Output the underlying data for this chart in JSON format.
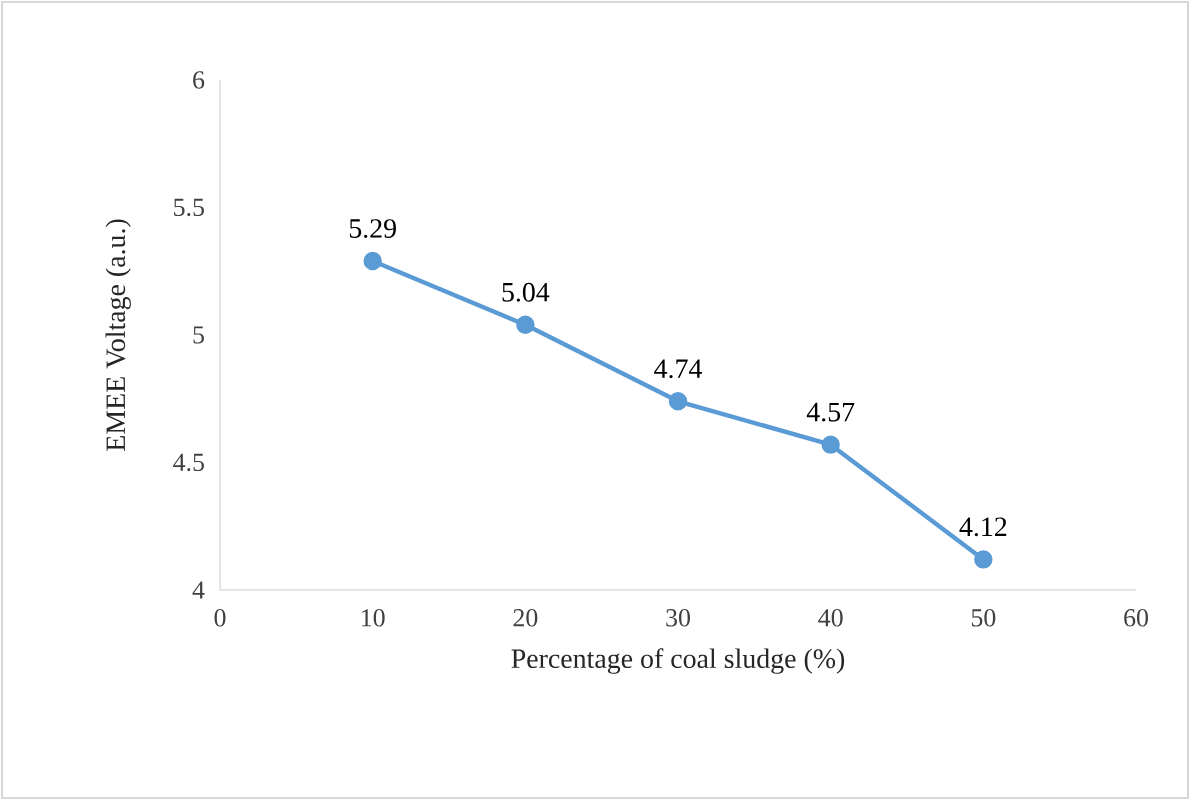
{
  "chart_data": {
    "type": "line",
    "xlabel": "Percentage of coal sludge (%)",
    "ylabel": "EMEE  Voltage (a.u.)",
    "series": [
      {
        "color": "#5b9bd5",
        "x": [
          10,
          20,
          30,
          40,
          50
        ],
        "values": [
          5.29,
          5.04,
          4.74,
          4.57,
          4.12
        ]
      }
    ],
    "xlim": [
      0,
      60
    ],
    "xticks": [
      0,
      10,
      20,
      30,
      40,
      50,
      60
    ],
    "ylim": [
      4,
      6
    ],
    "yticks": [
      4,
      4.5,
      5,
      5.5,
      6
    ],
    "marker": "circle",
    "line_style": "solid",
    "data_labels": true,
    "grid": false
  }
}
